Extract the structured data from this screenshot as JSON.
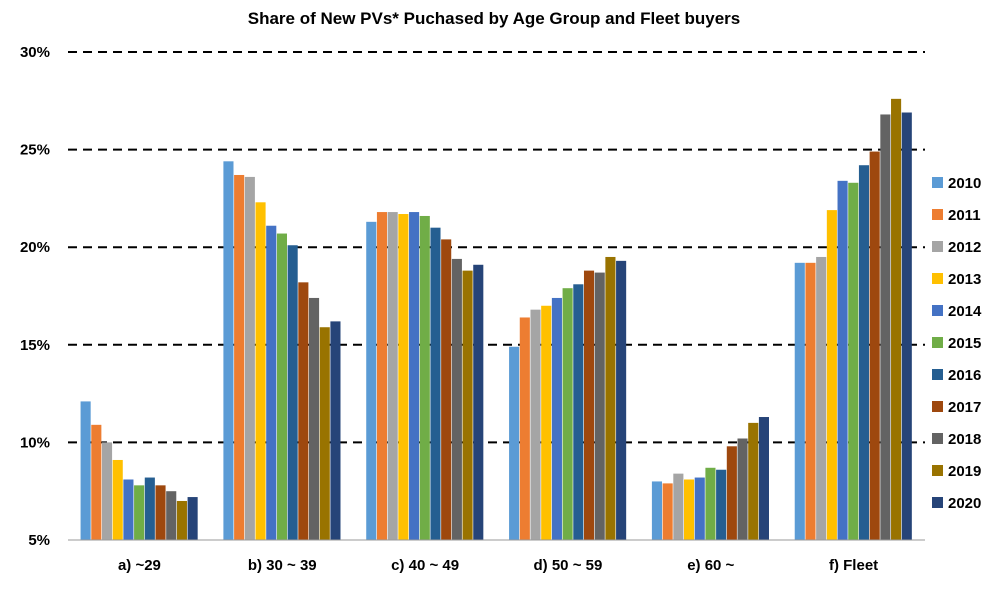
{
  "chart_data": {
    "type": "bar",
    "title": "Share of New PVs* Puchased by Age Group and Fleet buyers",
    "xlabel": "",
    "ylabel": "",
    "ylim": [
      5,
      30
    ],
    "yticks": [
      "5%",
      "10%",
      "15%",
      "20%",
      "25%",
      "30%"
    ],
    "ytick_values": [
      5,
      10,
      15,
      20,
      25,
      30
    ],
    "grid": true,
    "legend_position": "right",
    "categories": [
      "a) ~29",
      "b) 30 ~ 39",
      "c) 40 ~ 49",
      "d) 50 ~ 59",
      "e) 60 ~",
      "f) Fleet"
    ],
    "series": [
      {
        "name": "2010",
        "color": "#5B9BD5",
        "values": [
          12.1,
          24.4,
          21.3,
          14.9,
          8.0,
          19.2
        ]
      },
      {
        "name": "2011",
        "color": "#ED7D31",
        "values": [
          10.9,
          23.7,
          21.8,
          16.4,
          7.9,
          19.2
        ]
      },
      {
        "name": "2012",
        "color": "#A5A5A5",
        "values": [
          10.0,
          23.6,
          21.8,
          16.8,
          8.4,
          19.5
        ]
      },
      {
        "name": "2013",
        "color": "#FFC000",
        "values": [
          9.1,
          22.3,
          21.7,
          17.0,
          8.1,
          21.9
        ]
      },
      {
        "name": "2014",
        "color": "#4472C4",
        "values": [
          8.1,
          21.1,
          21.8,
          17.4,
          8.2,
          23.4
        ]
      },
      {
        "name": "2015",
        "color": "#70AD47",
        "values": [
          7.8,
          20.7,
          21.6,
          17.9,
          8.7,
          23.3
        ]
      },
      {
        "name": "2016",
        "color": "#255E91",
        "values": [
          8.2,
          20.1,
          21.0,
          18.1,
          8.6,
          24.2
        ]
      },
      {
        "name": "2017",
        "color": "#9E480E",
        "values": [
          7.8,
          18.2,
          20.4,
          18.8,
          9.8,
          24.9
        ]
      },
      {
        "name": "2018",
        "color": "#636363",
        "values": [
          7.5,
          17.4,
          19.4,
          18.7,
          10.2,
          26.8
        ]
      },
      {
        "name": "2019",
        "color": "#997300",
        "values": [
          7.0,
          15.9,
          18.8,
          19.5,
          11.0,
          27.6
        ]
      },
      {
        "name": "2020",
        "color": "#264478",
        "values": [
          7.2,
          16.2,
          19.1,
          19.3,
          11.3,
          26.9
        ]
      }
    ]
  }
}
